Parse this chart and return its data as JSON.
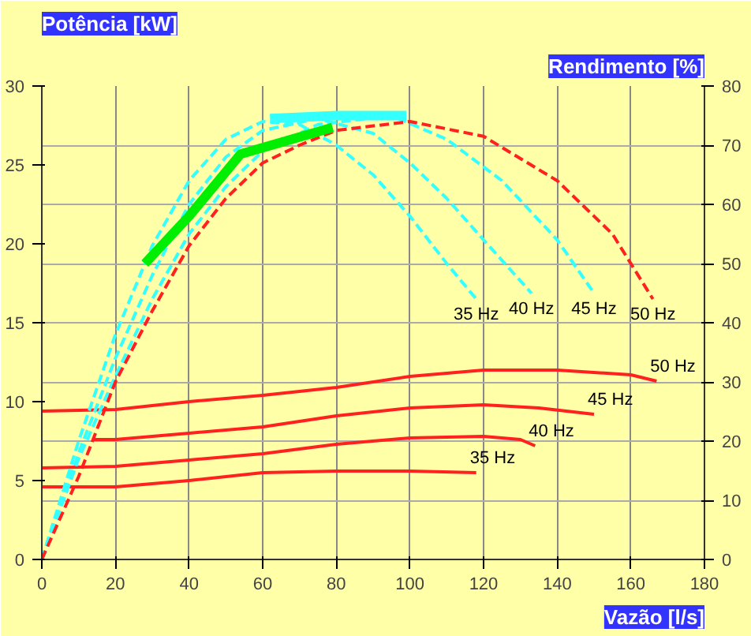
{
  "chart_data": {
    "type": "line",
    "xlabel": "Vazão [l/s]",
    "ylabel": "Potência [kW]",
    "y2label": "Rendimento [%]",
    "xlim": [
      0,
      180
    ],
    "xticks": [
      0,
      20,
      40,
      60,
      80,
      100,
      120,
      140,
      160,
      180
    ],
    "ylim": [
      0,
      30
    ],
    "yticks": [
      0,
      5,
      10,
      15,
      20,
      25,
      30
    ],
    "y2lim": [
      0,
      80
    ],
    "y2ticks": [
      0,
      10,
      20,
      30,
      40,
      50,
      60,
      70,
      80
    ],
    "grid": true,
    "marker": "none",
    "line_style": "solid",
    "series": [
      {
        "name": "50 Hz",
        "color": "#ff2020",
        "x": [
          0,
          20,
          40,
          60,
          80,
          100,
          120,
          140,
          160,
          167
        ],
        "values": [
          9.4,
          9.5,
          10.0,
          10.4,
          10.9,
          11.6,
          12.0,
          12.0,
          11.7,
          11.3
        ]
      },
      {
        "name": "45 Hz",
        "color": "#ff2020",
        "x": [
          14,
          20,
          40,
          60,
          80,
          100,
          120,
          135,
          150
        ],
        "values": [
          7.6,
          7.6,
          8.0,
          8.4,
          9.1,
          9.6,
          9.8,
          9.6,
          9.2
        ]
      },
      {
        "name": "40 Hz",
        "color": "#ff2020",
        "x": [
          0,
          20,
          40,
          60,
          80,
          100,
          120,
          130,
          134
        ],
        "values": [
          5.8,
          5.9,
          6.3,
          6.7,
          7.3,
          7.7,
          7.8,
          7.6,
          7.2
        ]
      },
      {
        "name": "35 Hz",
        "color": "#ff2020",
        "x": [
          0,
          20,
          40,
          60,
          80,
          100,
          118
        ],
        "values": [
          4.6,
          4.6,
          5.0,
          5.5,
          5.6,
          5.6,
          5.5
        ]
      },
      {
        "name": "35 Hz",
        "color": "#33ffff",
        "axis": "y2",
        "line_style": "dashed",
        "x": [
          0,
          5,
          10,
          20,
          30,
          40,
          50,
          60,
          70,
          80,
          90,
          100,
          110,
          118
        ],
        "values": [
          0,
          10,
          20,
          38,
          53,
          64,
          71,
          74,
          73.5,
          70,
          65,
          58,
          50,
          44
        ]
      },
      {
        "name": "40 Hz",
        "color": "#33ffff",
        "axis": "y2",
        "line_style": "dashed",
        "x": [
          0,
          10,
          20,
          30,
          40,
          50,
          60,
          75,
          90,
          100,
          110,
          120,
          133
        ],
        "values": [
          0,
          18,
          34,
          48,
          60,
          68,
          72.5,
          74.5,
          72,
          67,
          61,
          54,
          45
        ]
      },
      {
        "name": "45 Hz",
        "color": "#33ffff",
        "axis": "y2",
        "line_style": "dashed",
        "x": [
          0,
          10,
          20,
          30,
          40,
          50,
          60,
          75,
          95,
          110,
          125,
          140,
          150
        ],
        "values": [
          0,
          17,
          31,
          44,
          55,
          63,
          69,
          73.5,
          75,
          71,
          64,
          54,
          45
        ]
      },
      {
        "name": "50 Hz",
        "color": "#ff2020",
        "axis": "y2",
        "line_style": "dashed",
        "x": [
          0,
          10,
          20,
          30,
          40,
          50,
          60,
          70,
          80,
          100,
          120,
          140,
          155,
          166
        ],
        "values": [
          0,
          14,
          30,
          42,
          53,
          61,
          67,
          70,
          72.5,
          74,
          71.5,
          64,
          55,
          44
        ]
      },
      {
        "color": "#00ee00",
        "axis": "y2",
        "x": [
          28,
          40,
          54,
          79
        ],
        "values": [
          50,
          58,
          68.5,
          73
        ]
      },
      {
        "color": "#33ffff",
        "axis": "y2",
        "x": [
          62,
          80,
          99
        ],
        "values": [
          74.5,
          75,
          75
        ]
      }
    ]
  }
}
